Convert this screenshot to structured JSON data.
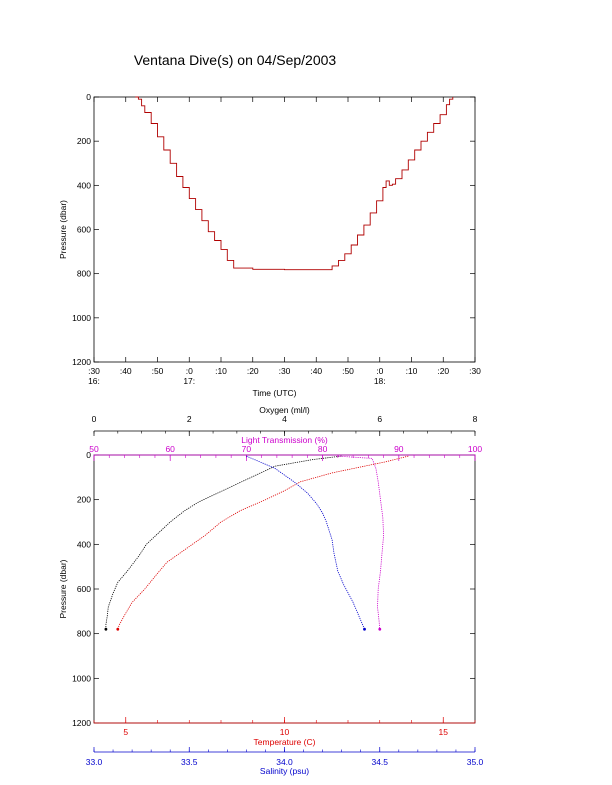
{
  "colors": {
    "axis": "#000000",
    "depth_trace": "#b00000",
    "oxygen": "#000000",
    "light_transmission": "#cc00cc",
    "temperature": "#dd0000",
    "salinity": "#0000cc"
  },
  "chart_data": [
    {
      "type": "line",
      "title": "Ventana Dive(s) on 04/Sep/2003",
      "xlabel": "Time (UTC)",
      "ylabel": "Pressure (dbar)",
      "y_reversed": true,
      "ylim": [
        1200,
        0
      ],
      "xlim": [
        "16:30",
        "18:30"
      ],
      "y_ticks": [
        "0",
        "200",
        "400",
        "600",
        "800",
        "1000",
        "1200"
      ],
      "x_ticks": [
        ":30",
        ":40",
        ":50",
        ":0",
        ":10",
        ":20",
        ":30",
        ":40",
        ":50",
        ":0",
        ":10",
        ":20",
        ":30"
      ],
      "hour_labels": [
        {
          "at": "16:30",
          "label": "16:"
        },
        {
          "at": "17:00",
          "label": "17:"
        },
        {
          "at": "18:00",
          "label": "18:"
        }
      ],
      "series": [
        {
          "points": [
            [
              "16:43",
              0
            ],
            [
              "16:44",
              10
            ],
            [
              "16:45",
              40
            ],
            [
              "16:46",
              70
            ],
            [
              "16:48",
              120
            ],
            [
              "16:50",
              180
            ],
            [
              "16:52",
              240
            ],
            [
              "16:54",
              300
            ],
            [
              "16:56",
              360
            ],
            [
              "16:58",
              410
            ],
            [
              "17:00",
              460
            ],
            [
              "17:02",
              510
            ],
            [
              "17:04",
              560
            ],
            [
              "17:06",
              610
            ],
            [
              "17:08",
              650
            ],
            [
              "17:10",
              690
            ],
            [
              "17:12",
              740
            ],
            [
              "17:14",
              775
            ],
            [
              "17:20",
              780
            ],
            [
              "17:30",
              782
            ],
            [
              "17:40",
              782
            ],
            [
              "17:43",
              782
            ],
            [
              "17:45",
              765
            ],
            [
              "17:47",
              740
            ],
            [
              "17:49",
              710
            ],
            [
              "17:51",
              670
            ],
            [
              "17:53",
              625
            ],
            [
              "17:55",
              580
            ],
            [
              "17:57",
              525
            ],
            [
              "17:59",
              470
            ],
            [
              "18:01",
              410
            ],
            [
              "18:02",
              380
            ],
            [
              "18:03",
              400
            ],
            [
              "18:04",
              395
            ],
            [
              "18:05",
              370
            ],
            [
              "18:07",
              330
            ],
            [
              "18:09",
              285
            ],
            [
              "18:11",
              240
            ],
            [
              "18:13",
              200
            ],
            [
              "18:15",
              160
            ],
            [
              "18:17",
              120
            ],
            [
              "18:19",
              80
            ],
            [
              "18:21",
              35
            ],
            [
              "18:22",
              10
            ],
            [
              "18:23",
              0
            ]
          ]
        }
      ]
    },
    {
      "type": "line",
      "ylabel": "Pressure (dbar)",
      "y_reversed": true,
      "ylim": [
        1200,
        0
      ],
      "y_ticks": [
        "0",
        "200",
        "400",
        "600",
        "800",
        "1000",
        "1200"
      ],
      "axes": {
        "oxygen": {
          "label": "Oxygen (ml/l)",
          "range": [
            0,
            8
          ],
          "ticks": [
            "0",
            "2",
            "4",
            "6",
            "8"
          ]
        },
        "light_transmission": {
          "label": "Light Transmission (%)",
          "range": [
            50,
            100
          ],
          "ticks": [
            "50",
            "60",
            "70",
            "80",
            "90",
            "100"
          ]
        },
        "temperature": {
          "label": "Temperature (C)",
          "range": [
            4,
            16
          ],
          "ticks": [
            "5",
            "10",
            "15"
          ]
        },
        "salinity": {
          "label": "Salinity (psu)",
          "range": [
            33.0,
            35.0
          ],
          "ticks": [
            "33.0",
            "33.5",
            "34.0",
            "34.5",
            "35.0"
          ]
        }
      },
      "series": [
        {
          "axis": "oxygen",
          "points": [
            [
              5.2,
              5
            ],
            [
              4.6,
              20
            ],
            [
              3.8,
              50
            ],
            [
              3.4,
              90
            ],
            [
              3.0,
              130
            ],
            [
              2.6,
              170
            ],
            [
              2.2,
              210
            ],
            [
              1.9,
              250
            ],
            [
              1.6,
              300
            ],
            [
              1.3,
              360
            ],
            [
              1.1,
              400
            ],
            [
              0.95,
              450
            ],
            [
              0.7,
              520
            ],
            [
              0.5,
              570
            ],
            [
              0.4,
              620
            ],
            [
              0.3,
              680
            ],
            [
              0.28,
              720
            ],
            [
              0.25,
              760
            ],
            [
              0.25,
              780
            ]
          ]
        },
        {
          "axis": "light_transmission",
          "points": [
            [
              82,
              5
            ],
            [
              86.5,
              15
            ],
            [
              87,
              60
            ],
            [
              87.3,
              120
            ],
            [
              87.6,
              200
            ],
            [
              87.9,
              280
            ],
            [
              88,
              360
            ],
            [
              87.8,
              440
            ],
            [
              87.6,
              520
            ],
            [
              87.3,
              600
            ],
            [
              87.2,
              680
            ],
            [
              87.4,
              740
            ],
            [
              87.5,
              780
            ]
          ]
        },
        {
          "axis": "temperature",
          "points": [
            [
              13.9,
              5
            ],
            [
              13.2,
              30
            ],
            [
              11.5,
              80
            ],
            [
              10.5,
              120
            ],
            [
              10.0,
              160
            ],
            [
              9.4,
              200
            ],
            [
              8.6,
              250
            ],
            [
              8.0,
              300
            ],
            [
              7.5,
              360
            ],
            [
              7.1,
              400
            ],
            [
              6.7,
              440
            ],
            [
              6.3,
              480
            ],
            [
              6.0,
              530
            ],
            [
              5.6,
              600
            ],
            [
              5.2,
              660
            ],
            [
              4.95,
              720
            ],
            [
              4.8,
              760
            ],
            [
              4.75,
              780
            ]
          ]
        },
        {
          "axis": "salinity",
          "points": [
            [
              33.8,
              5
            ],
            [
              33.95,
              60
            ],
            [
              34.05,
              120
            ],
            [
              34.12,
              170
            ],
            [
              34.17,
              220
            ],
            [
              34.2,
              260
            ],
            [
              34.22,
              300
            ],
            [
              34.25,
              380
            ],
            [
              34.26,
              440
            ],
            [
              34.28,
              520
            ],
            [
              34.31,
              580
            ],
            [
              34.36,
              660
            ],
            [
              34.39,
              720
            ],
            [
              34.41,
              760
            ],
            [
              34.42,
              780
            ]
          ]
        }
      ]
    }
  ]
}
